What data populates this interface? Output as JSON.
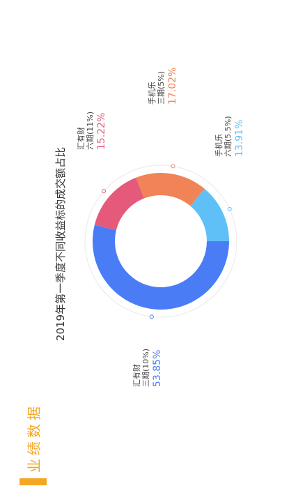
{
  "section": {
    "title": "业绩数据",
    "accent_color": "#F5A623"
  },
  "chart_data": {
    "type": "pie",
    "title": "2019年第一季度不同收益标的成交额占比",
    "orientation": "rotated-90-clockwise",
    "slices": [
      {
        "name_line1": "汇有财",
        "name_line2": "三期(10%)",
        "value": 53.85,
        "label": "53.85%",
        "color": "#4A7CF6",
        "label_color": "#4A7CF6"
      },
      {
        "name_line1": "汇有财",
        "name_line2": "六期(11%)",
        "value": 15.22,
        "label": "15.22%",
        "color": "#E55A7A",
        "label_color": "#E55A7A"
      },
      {
        "name_line1": "手机乐",
        "name_line2": "三期(5%)",
        "value": 17.02,
        "label": "17.02%",
        "color": "#F08456",
        "label_color": "#F08456"
      },
      {
        "name_line1": "手机乐",
        "name_line2": "六期(5.5%)",
        "value": 13.91,
        "label": "13.91%",
        "color": "#5EC0F7",
        "label_color": "#5EC0F7"
      }
    ]
  }
}
